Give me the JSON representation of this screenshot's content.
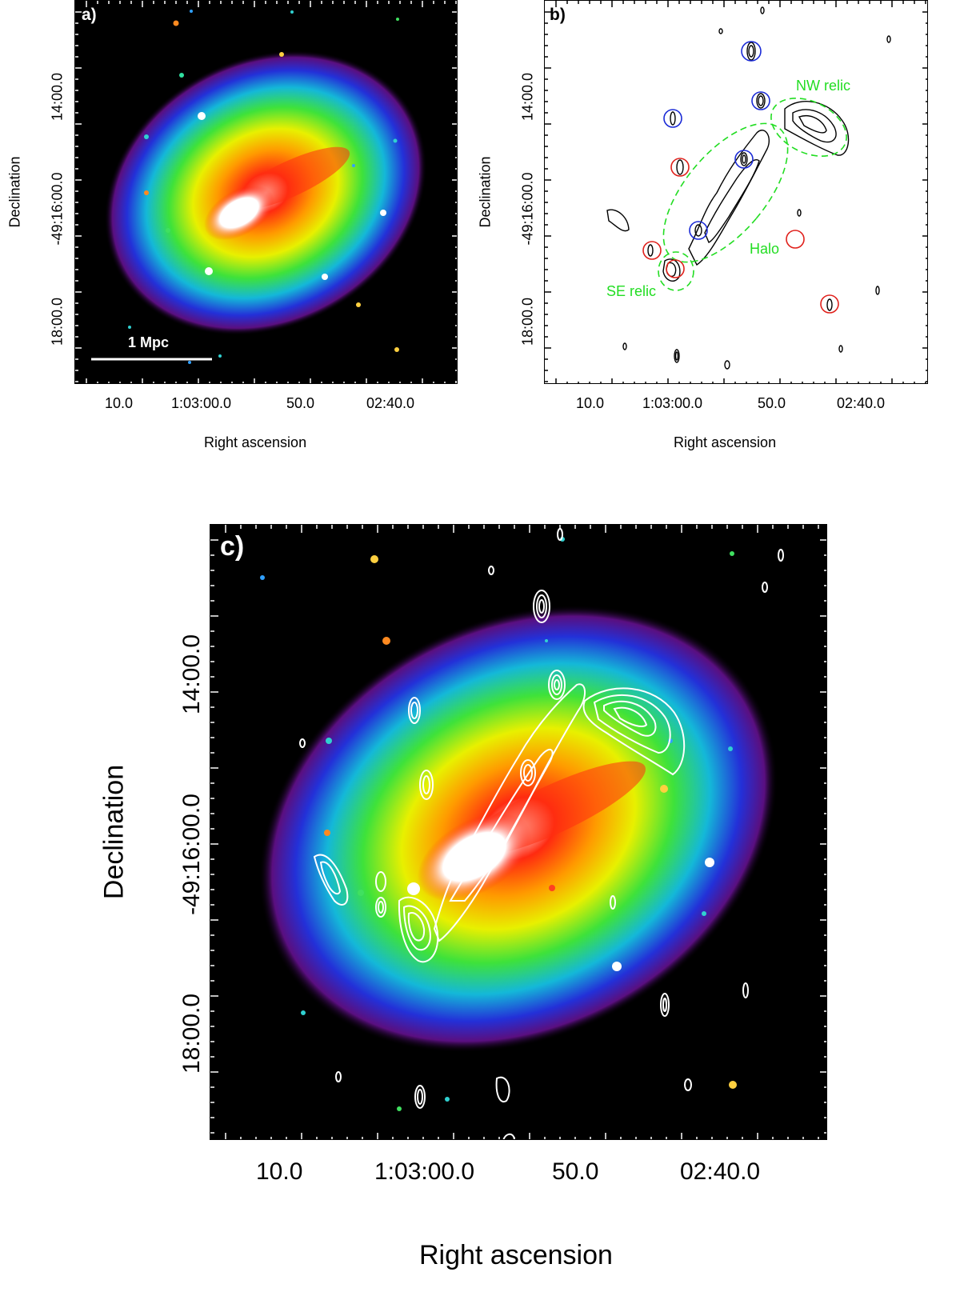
{
  "panel_a": {
    "letter": "a)",
    "scale_bar_label": "1 Mpc",
    "x_ticks": [
      "10.0",
      "1:03:00.0",
      "50.0",
      "02:40.0"
    ],
    "y_ticks": [
      "14:00.0",
      "-49:16:00.0",
      "18:00.0"
    ],
    "x_title": "Right ascension",
    "y_title": "Declination"
  },
  "panel_b": {
    "letter": "b)",
    "labels": {
      "nw_relic": "NW relic",
      "halo": "Halo",
      "se_relic": "SE relic"
    },
    "x_ticks": [
      "10.0",
      "1:03:00.0",
      "50.0",
      "02:40.0"
    ],
    "y_ticks": [
      "14:00.0",
      "-49:16:00.0",
      "18:00.0"
    ],
    "x_title": "Right ascension",
    "y_title": "Declination",
    "colors": {
      "label_green": "#22dd22",
      "circle_red": "#e0201b",
      "circle_blue": "#1a2ad6"
    }
  },
  "panel_c": {
    "letter": "c)",
    "x_ticks": [
      "10.0",
      "1:03:00.0",
      "50.0",
      "02:40.0"
    ],
    "y_ticks": [
      "14:00.0",
      "-49:16:00.0",
      "18:00.0"
    ],
    "x_title": "Right ascension",
    "y_title": "Declination"
  }
}
